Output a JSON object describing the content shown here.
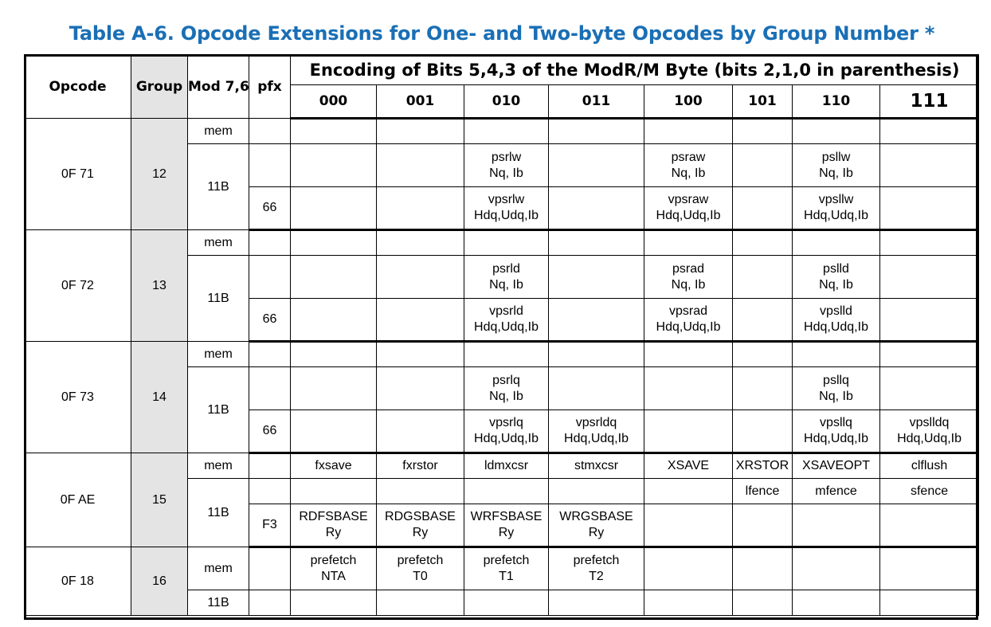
{
  "title": "Table A-6.  Opcode Extensions for One- and Two-byte Opcodes by Group Number *",
  "header": {
    "opcode": "Opcode",
    "group": "Group",
    "mod": "Mod 7,6",
    "pfx": "pfx",
    "encoding": "Encoding of Bits 5,4,3 of the ModR/M Byte (bits 2,1,0 in parenthesis)",
    "bits": [
      "000",
      "001",
      "010",
      "011",
      "100",
      "101",
      "110",
      "111"
    ]
  },
  "groups": [
    {
      "opcode": "0F 71",
      "group": "12",
      "rows": [
        {
          "mod": "mem",
          "pfx": "",
          "cells": [
            "",
            "",
            "",
            "",
            "",
            "",
            "",
            ""
          ]
        },
        {
          "mod": "11B",
          "pfx": "",
          "cells": [
            "",
            "",
            "psrlw\nNq, Ib",
            "",
            "psraw\nNq, Ib",
            "",
            "psllw\nNq, Ib",
            ""
          ]
        },
        {
          "mod": "",
          "pfx": "66",
          "cells": [
            "",
            "",
            "vpsrlw\nHdq,Udq,Ib",
            "",
            "vpsraw\nHdq,Udq,Ib",
            "",
            "vpsllw\nHdq,Udq,Ib",
            ""
          ]
        }
      ]
    },
    {
      "opcode": "0F 72",
      "group": "13",
      "rows": [
        {
          "mod": "mem",
          "pfx": "",
          "cells": [
            "",
            "",
            "",
            "",
            "",
            "",
            "",
            ""
          ]
        },
        {
          "mod": "11B",
          "pfx": "",
          "cells": [
            "",
            "",
            "psrld\nNq, Ib",
            "",
            "psrad\nNq, Ib",
            "",
            "pslld\nNq, Ib",
            ""
          ]
        },
        {
          "mod": "",
          "pfx": "66",
          "cells": [
            "",
            "",
            "vpsrld\nHdq,Udq,Ib",
            "",
            "vpsrad\nHdq,Udq,Ib",
            "",
            "vpslld\nHdq,Udq,Ib",
            ""
          ]
        }
      ]
    },
    {
      "opcode": "0F 73",
      "group": "14",
      "rows": [
        {
          "mod": "mem",
          "pfx": "",
          "cells": [
            "",
            "",
            "",
            "",
            "",
            "",
            "",
            ""
          ]
        },
        {
          "mod": "11B",
          "pfx": "",
          "cells": [
            "",
            "",
            "psrlq\nNq, Ib",
            "",
            "",
            "",
            "psllq\nNq, Ib",
            ""
          ]
        },
        {
          "mod": "",
          "pfx": "66",
          "cells": [
            "",
            "",
            "vpsrlq\nHdq,Udq,Ib",
            "vpsrldq\nHdq,Udq,Ib",
            "",
            "",
            "vpsllq\nHdq,Udq,Ib",
            "vpslldq\nHdq,Udq,Ib"
          ]
        }
      ]
    },
    {
      "opcode": "0F AE",
      "group": "15",
      "rows": [
        {
          "mod": "mem",
          "pfx": "",
          "cells": [
            "fxsave",
            "fxrstor",
            "ldmxcsr",
            "stmxcsr",
            "XSAVE",
            "XRSTOR",
            "XSAVEOPT",
            "clflush"
          ]
        },
        {
          "mod": "11B",
          "pfx": "",
          "cells": [
            "",
            "",
            "",
            "",
            "",
            "lfence",
            "mfence",
            "sfence"
          ]
        },
        {
          "mod": "",
          "pfx": "F3",
          "cells": [
            "RDFSBASE\nRy",
            "RDGSBASE\nRy",
            "WRFSBASE\nRy",
            "WRGSBASE\nRy",
            "",
            "",
            "",
            ""
          ]
        }
      ]
    },
    {
      "opcode": "0F 18",
      "group": "16",
      "rows": [
        {
          "mod": "mem",
          "pfx": "",
          "cells": [
            "prefetch\nNTA",
            "prefetch\nT0",
            "prefetch\nT1",
            "prefetch\nT2",
            "",
            "",
            "",
            ""
          ]
        },
        {
          "mod": "11B",
          "pfx": "",
          "cells": [
            "",
            "",
            "",
            "",
            "",
            "",
            "",
            ""
          ]
        }
      ]
    }
  ]
}
